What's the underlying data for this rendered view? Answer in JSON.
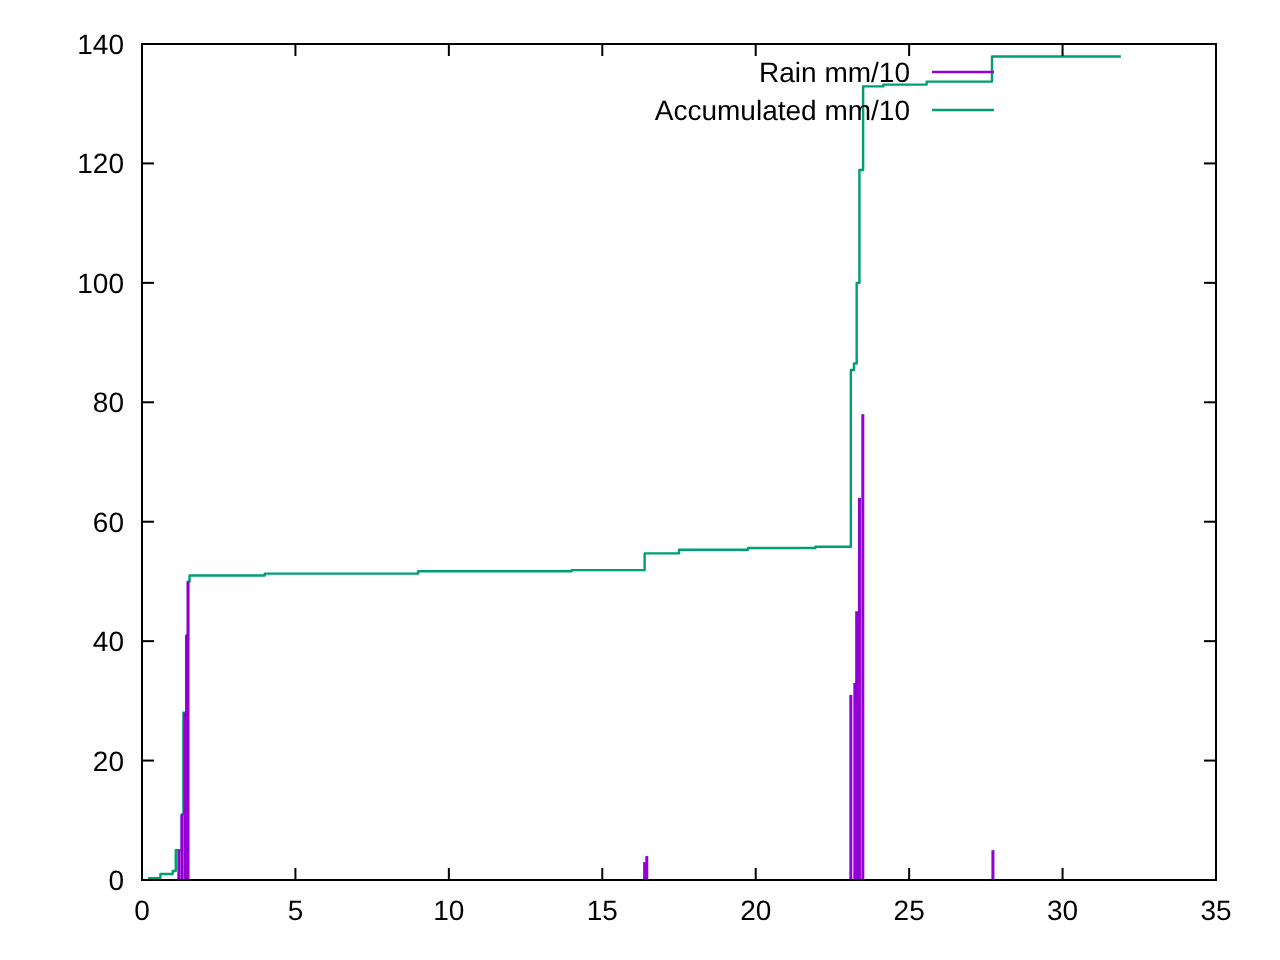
{
  "chart_data": {
    "type": "bar",
    "xlim": [
      0,
      35
    ],
    "ylim": [
      0,
      140
    ],
    "xticks": [
      0,
      5,
      10,
      15,
      20,
      25,
      30,
      35
    ],
    "yticks": [
      0,
      20,
      40,
      60,
      80,
      100,
      120,
      140
    ],
    "legend": "top right",
    "grid": false,
    "series": [
      {
        "name": "Rain mm/10",
        "color": "#9400d3",
        "x": [
          1.2,
          1.3,
          1.4,
          1.45,
          1.5,
          16.38,
          16.45,
          23.1,
          23.23,
          23.29,
          23.38,
          23.49,
          27.73
        ],
        "values": [
          5,
          11,
          28,
          41,
          50,
          3,
          4,
          31,
          33,
          45,
          64,
          78,
          5
        ]
      },
      {
        "name": "Accumulated mm/10",
        "type": "step",
        "color": "#009e73",
        "x": [
          0.2,
          0.6,
          1.0,
          1.1,
          1.3,
          1.35,
          1.45,
          1.5,
          1.55,
          4,
          9,
          14,
          16.38,
          17.5,
          19.75,
          21.95,
          23.1,
          23.2,
          23.29,
          23.38,
          23.5,
          24.16,
          25.57,
          27.7,
          31.9
        ],
        "values": [
          0.3,
          1,
          1.5,
          5,
          11,
          28,
          41,
          50,
          51,
          51.3,
          51.7,
          51.9,
          54.7,
          55.3,
          55.6,
          55.8,
          85.4,
          86.5,
          100,
          118.9,
          132.9,
          133.2,
          133.7,
          137.9,
          137.9
        ]
      }
    ]
  }
}
